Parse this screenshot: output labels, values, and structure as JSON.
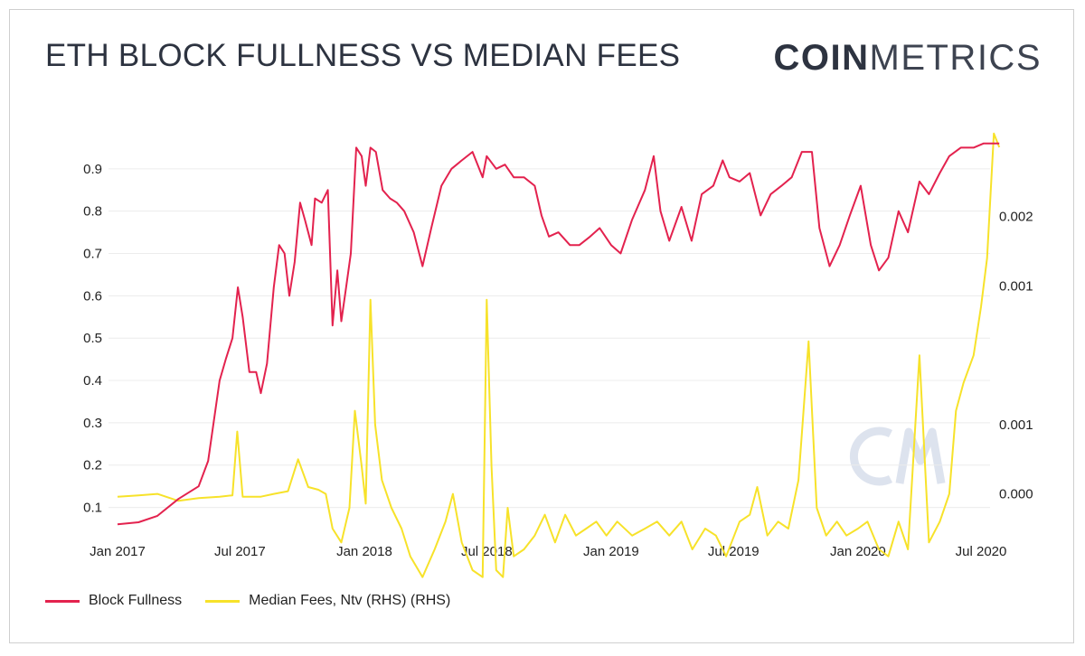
{
  "title": "ETH BLOCK FULLNESS VS MEDIAN FEES",
  "logo": {
    "bold": "COIN",
    "light": "METRICS"
  },
  "colors": {
    "block_fullness": "#e3224e",
    "median_fees": "#f7e22a",
    "watermark": "#dde3ee"
  },
  "watermark_icon": "coinmetrics-cm-watermark-icon",
  "chart_data": {
    "type": "line",
    "title": "ETH BLOCK FULLNESS VS MEDIAN FEES",
    "x_axis": {
      "ticks": [
        "Jan 2017",
        "Jul 2017",
        "Jan 2018",
        "Jul 2018",
        "Jan 2019",
        "Jul 2019",
        "Jan 2020",
        "Jul 2020"
      ]
    },
    "y_left": {
      "range": [
        0.05,
        1.0
      ],
      "ticks": [
        "0.1",
        "0.2",
        "0.3",
        "0.4",
        "0.5",
        "0.6",
        "0.7",
        "0.8",
        "0.9"
      ]
    },
    "y_right": {
      "range": [
        -0.00025,
        0.00265
      ],
      "ticks": [
        "0.000",
        "0.001",
        "0.001",
        "0.002"
      ]
    },
    "grid": true,
    "legend_position": "bottom-left",
    "series": [
      {
        "name": "Block Fullness",
        "axis": "left",
        "points": [
          [
            "2017-01-01",
            0.06
          ],
          [
            "2017-02-01",
            0.065
          ],
          [
            "2017-03-01",
            0.08
          ],
          [
            "2017-04-01",
            0.12
          ],
          [
            "2017-05-01",
            0.15
          ],
          [
            "2017-05-15",
            0.21
          ],
          [
            "2017-06-01",
            0.4
          ],
          [
            "2017-06-10",
            0.45
          ],
          [
            "2017-06-20",
            0.5
          ],
          [
            "2017-06-28",
            0.62
          ],
          [
            "2017-07-05",
            0.55
          ],
          [
            "2017-07-15",
            0.42
          ],
          [
            "2017-07-25",
            0.42
          ],
          [
            "2017-08-01",
            0.37
          ],
          [
            "2017-08-10",
            0.44
          ],
          [
            "2017-08-20",
            0.62
          ],
          [
            "2017-08-28",
            0.72
          ],
          [
            "2017-09-05",
            0.7
          ],
          [
            "2017-09-12",
            0.6
          ],
          [
            "2017-09-20",
            0.68
          ],
          [
            "2017-09-28",
            0.82
          ],
          [
            "2017-10-05",
            0.78
          ],
          [
            "2017-10-15",
            0.72
          ],
          [
            "2017-10-20",
            0.83
          ],
          [
            "2017-10-30",
            0.82
          ],
          [
            "2017-11-08",
            0.85
          ],
          [
            "2017-11-15",
            0.53
          ],
          [
            "2017-11-22",
            0.66
          ],
          [
            "2017-11-28",
            0.54
          ],
          [
            "2017-12-05",
            0.62
          ],
          [
            "2017-12-12",
            0.7
          ],
          [
            "2017-12-20",
            0.95
          ],
          [
            "2017-12-28",
            0.93
          ],
          [
            "2018-01-03",
            0.86
          ],
          [
            "2018-01-10",
            0.95
          ],
          [
            "2018-01-18",
            0.94
          ],
          [
            "2018-01-28",
            0.85
          ],
          [
            "2018-02-08",
            0.83
          ],
          [
            "2018-02-18",
            0.82
          ],
          [
            "2018-03-01",
            0.8
          ],
          [
            "2018-03-15",
            0.75
          ],
          [
            "2018-03-28",
            0.67
          ],
          [
            "2018-04-10",
            0.76
          ],
          [
            "2018-04-25",
            0.86
          ],
          [
            "2018-05-10",
            0.9
          ],
          [
            "2018-05-25",
            0.92
          ],
          [
            "2018-06-10",
            0.94
          ],
          [
            "2018-06-25",
            0.88
          ],
          [
            "2018-07-01",
            0.93
          ],
          [
            "2018-07-15",
            0.9
          ],
          [
            "2018-07-28",
            0.91
          ],
          [
            "2018-08-10",
            0.88
          ],
          [
            "2018-08-25",
            0.88
          ],
          [
            "2018-09-10",
            0.86
          ],
          [
            "2018-09-20",
            0.79
          ],
          [
            "2018-10-01",
            0.74
          ],
          [
            "2018-10-15",
            0.75
          ],
          [
            "2018-11-01",
            0.72
          ],
          [
            "2018-11-15",
            0.72
          ],
          [
            "2018-12-01",
            0.74
          ],
          [
            "2018-12-15",
            0.76
          ],
          [
            "2019-01-01",
            0.72
          ],
          [
            "2019-01-15",
            0.7
          ],
          [
            "2019-02-01",
            0.78
          ],
          [
            "2019-02-20",
            0.85
          ],
          [
            "2019-03-05",
            0.93
          ],
          [
            "2019-03-15",
            0.8
          ],
          [
            "2019-03-28",
            0.73
          ],
          [
            "2019-04-15",
            0.81
          ],
          [
            "2019-04-30",
            0.73
          ],
          [
            "2019-05-15",
            0.84
          ],
          [
            "2019-06-01",
            0.86
          ],
          [
            "2019-06-15",
            0.92
          ],
          [
            "2019-06-25",
            0.88
          ],
          [
            "2019-07-10",
            0.87
          ],
          [
            "2019-07-25",
            0.89
          ],
          [
            "2019-08-10",
            0.79
          ],
          [
            "2019-08-25",
            0.84
          ],
          [
            "2019-09-10",
            0.86
          ],
          [
            "2019-09-25",
            0.88
          ],
          [
            "2019-10-10",
            0.94
          ],
          [
            "2019-10-25",
            0.94
          ],
          [
            "2019-11-05",
            0.76
          ],
          [
            "2019-11-20",
            0.67
          ],
          [
            "2019-12-05",
            0.72
          ],
          [
            "2019-12-20",
            0.79
          ],
          [
            "2020-01-05",
            0.86
          ],
          [
            "2020-01-20",
            0.72
          ],
          [
            "2020-02-01",
            0.66
          ],
          [
            "2020-02-15",
            0.69
          ],
          [
            "2020-03-01",
            0.8
          ],
          [
            "2020-03-15",
            0.75
          ],
          [
            "2020-04-01",
            0.87
          ],
          [
            "2020-04-15",
            0.84
          ],
          [
            "2020-05-01",
            0.89
          ],
          [
            "2020-05-15",
            0.93
          ],
          [
            "2020-06-01",
            0.95
          ],
          [
            "2020-06-20",
            0.95
          ],
          [
            "2020-07-05",
            0.96
          ],
          [
            "2020-07-20",
            0.96
          ],
          [
            "2020-07-28",
            0.96
          ]
        ]
      },
      {
        "name": "Median Fees, Ntv (RHS) (RHS)",
        "axis": "right",
        "points": [
          [
            "2017-01-01",
            -2e-05
          ],
          [
            "2017-02-01",
            -1e-05
          ],
          [
            "2017-03-01",
            0.0
          ],
          [
            "2017-04-01",
            -5e-05
          ],
          [
            "2017-05-01",
            -3e-05
          ],
          [
            "2017-06-01",
            -2e-05
          ],
          [
            "2017-06-20",
            -1e-05
          ],
          [
            "2017-06-27",
            0.00045
          ],
          [
            "2017-07-05",
            -2e-05
          ],
          [
            "2017-08-01",
            -2e-05
          ],
          [
            "2017-08-20",
            0.0
          ],
          [
            "2017-09-10",
            2e-05
          ],
          [
            "2017-09-25",
            0.00025
          ],
          [
            "2017-10-10",
            5e-05
          ],
          [
            "2017-10-25",
            3e-05
          ],
          [
            "2017-11-05",
            0.0
          ],
          [
            "2017-11-15",
            -0.00025
          ],
          [
            "2017-11-28",
            -0.00035
          ],
          [
            "2017-12-10",
            -0.0001
          ],
          [
            "2017-12-18",
            0.0006
          ],
          [
            "2017-12-28",
            0.0002
          ],
          [
            "2018-01-03",
            -7e-05
          ],
          [
            "2018-01-10",
            0.0014
          ],
          [
            "2018-01-17",
            0.0005
          ],
          [
            "2018-01-27",
            0.0001
          ],
          [
            "2018-02-10",
            -0.0001
          ],
          [
            "2018-02-25",
            -0.00025
          ],
          [
            "2018-03-10",
            -0.00045
          ],
          [
            "2018-03-28",
            -0.0006
          ],
          [
            "2018-04-15",
            -0.0004
          ],
          [
            "2018-05-01",
            -0.0002
          ],
          [
            "2018-05-12",
            0.0
          ],
          [
            "2018-05-25",
            -0.00035
          ],
          [
            "2018-06-10",
            -0.00055
          ],
          [
            "2018-06-25",
            -0.0006
          ],
          [
            "2018-07-01",
            0.0014
          ],
          [
            "2018-07-08",
            0.0002
          ],
          [
            "2018-07-15",
            -0.00055
          ],
          [
            "2018-07-25",
            -0.0006
          ],
          [
            "2018-08-01",
            -0.0001
          ],
          [
            "2018-08-10",
            -0.00045
          ],
          [
            "2018-08-25",
            -0.0004
          ],
          [
            "2018-09-10",
            -0.0003
          ],
          [
            "2018-09-25",
            -0.00015
          ],
          [
            "2018-10-10",
            -0.00035
          ],
          [
            "2018-10-25",
            -0.00015
          ],
          [
            "2018-11-10",
            -0.0003
          ],
          [
            "2018-11-25",
            -0.00025
          ],
          [
            "2018-12-10",
            -0.0002
          ],
          [
            "2018-12-25",
            -0.0003
          ],
          [
            "2019-01-10",
            -0.0002
          ],
          [
            "2019-02-01",
            -0.0003
          ],
          [
            "2019-02-20",
            -0.00025
          ],
          [
            "2019-03-10",
            -0.0002
          ],
          [
            "2019-03-28",
            -0.0003
          ],
          [
            "2019-04-15",
            -0.0002
          ],
          [
            "2019-05-01",
            -0.0004
          ],
          [
            "2019-05-20",
            -0.00025
          ],
          [
            "2019-06-05",
            -0.0003
          ],
          [
            "2019-06-20",
            -0.00045
          ],
          [
            "2019-07-10",
            -0.0002
          ],
          [
            "2019-07-25",
            -0.00015
          ],
          [
            "2019-08-05",
            5e-05
          ],
          [
            "2019-08-20",
            -0.0003
          ],
          [
            "2019-09-05",
            -0.0002
          ],
          [
            "2019-09-20",
            -0.00025
          ],
          [
            "2019-10-05",
            0.0001
          ],
          [
            "2019-10-20",
            0.0011
          ],
          [
            "2019-11-01",
            -0.0001
          ],
          [
            "2019-11-15",
            -0.0003
          ],
          [
            "2019-12-01",
            -0.0002
          ],
          [
            "2019-12-15",
            -0.0003
          ],
          [
            "2020-01-01",
            -0.00025
          ],
          [
            "2020-01-15",
            -0.0002
          ],
          [
            "2020-02-01",
            -0.0004
          ],
          [
            "2020-02-15",
            -0.00045
          ],
          [
            "2020-03-01",
            -0.0002
          ],
          [
            "2020-03-15",
            -0.0004
          ],
          [
            "2020-04-01",
            0.001
          ],
          [
            "2020-04-15",
            -0.00035
          ],
          [
            "2020-05-01",
            -0.0002
          ],
          [
            "2020-05-15",
            0.0
          ],
          [
            "2020-05-25",
            0.0006
          ],
          [
            "2020-06-05",
            0.0008
          ],
          [
            "2020-06-20",
            0.001
          ],
          [
            "2020-07-01",
            0.00135
          ],
          [
            "2020-07-10",
            0.0017
          ],
          [
            "2020-07-20",
            0.0026
          ],
          [
            "2020-07-28",
            0.0025
          ]
        ]
      }
    ],
    "legend": [
      "Block Fullness",
      "Median Fees, Ntv (RHS) (RHS)"
    ]
  }
}
